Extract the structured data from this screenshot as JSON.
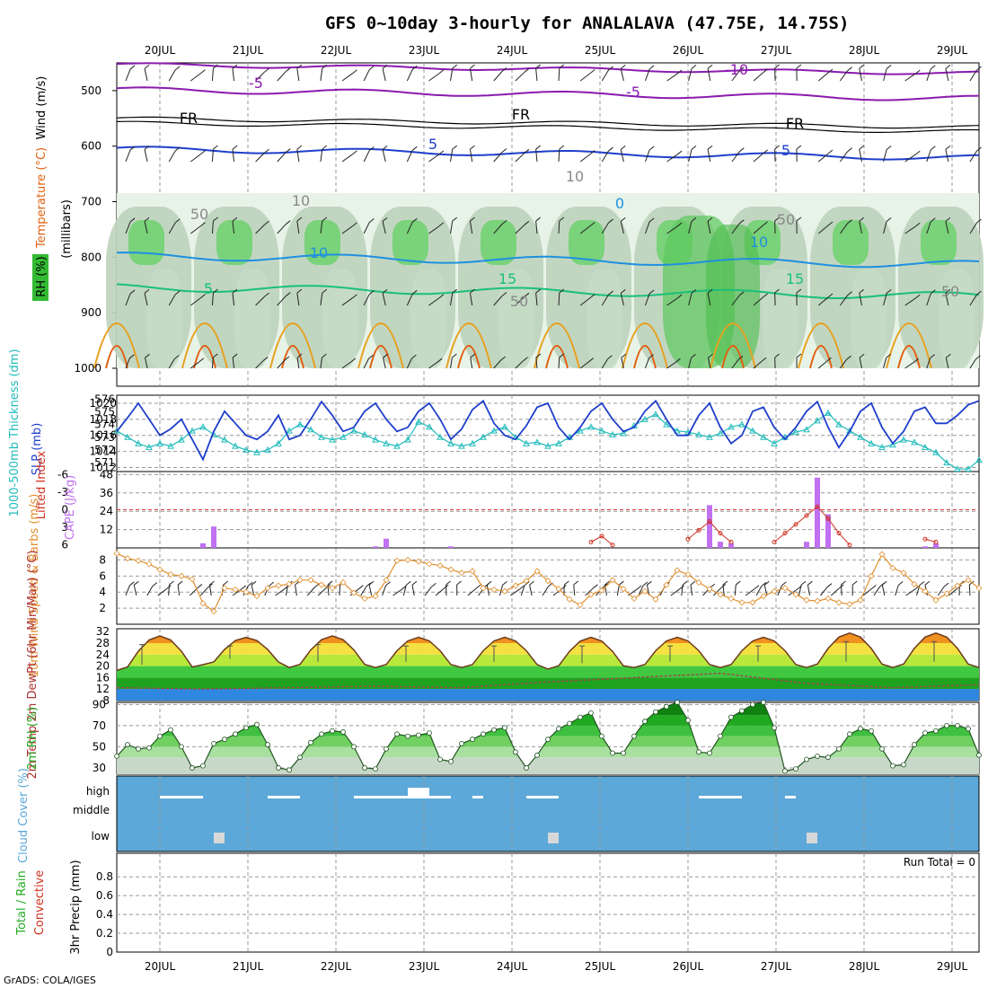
{
  "title": "GFS 0~10day 3-hourly for ANALALAVA (47.75E, 14.75S)",
  "credit": "GrADS: COLA/IGES",
  "run_total_text": "Run Total = 0",
  "colors": {
    "purple": "#8a1ab0",
    "blue": "#1f3fcc",
    "lightblue": "#1e90e0",
    "green15": "#1abf7a",
    "orange": "#e8a020",
    "darkorange": "#e06010",
    "thickness": "#22bbbb",
    "slp": "#1f3fcc",
    "cape": "#c070f0",
    "li": "#d03020",
    "wind10": "#e09030",
    "cloud": "#5ca8d8",
    "rh": "#22aa22"
  },
  "chart_data": [
    {
      "name": "upper-air",
      "type": "heatmap",
      "ylabel_parts": [
        "RH (%)",
        "Temperature (°C)",
        "Wind (m/s)"
      ],
      "ylabel2": "(millibars)",
      "y_ticks": [
        "500",
        "600",
        "700",
        "800",
        "900",
        "1000"
      ],
      "ylim": [
        1000,
        450
      ],
      "x_ticks": [
        "20JUL",
        "21JUL",
        "22JUL",
        "23JUL",
        "24JUL",
        "25JUL",
        "26JUL",
        "27JUL",
        "28JUL",
        "29JUL"
      ],
      "contour_labels": [
        "-10",
        "-5",
        "-5",
        "FR",
        "FR",
        "FR",
        "5",
        "5",
        "5",
        "10",
        "10",
        "0",
        "15",
        "15",
        "5",
        "50",
        "50",
        "50",
        "10",
        "50",
        "10"
      ]
    },
    {
      "name": "slp-thickness",
      "type": "line",
      "ylabel": "1000-500mb Thickness (dm)",
      "ylabel_slp": "SLP (mb)",
      "left_ticks": [
        "576",
        "575",
        "574",
        "573",
        "572",
        "571"
      ],
      "right_ticks": [
        "1020",
        "1018",
        "1016",
        "1014",
        "1012"
      ],
      "x": [
        0,
        1,
        2,
        3,
        4,
        5,
        6,
        7,
        8,
        9,
        10,
        11,
        12,
        13,
        14,
        15,
        16,
        17,
        18,
        19,
        20,
        21,
        22,
        23,
        24,
        25,
        26,
        27,
        28,
        29,
        30,
        31,
        32,
        33,
        34,
        35,
        36,
        37,
        38,
        39,
        40,
        41,
        42,
        43,
        44,
        45,
        46,
        47,
        48,
        49,
        50,
        51,
        52,
        53,
        54,
        55,
        56,
        57,
        58,
        59,
        60,
        61,
        62,
        63,
        64,
        65,
        66,
        67,
        68,
        69,
        70,
        71,
        72,
        73,
        74,
        75,
        76,
        77,
        78,
        79,
        80
      ],
      "series": [
        {
          "name": "SLP",
          "unit": "mb",
          "values": [
            1016.5,
            1018.2,
            1020.0,
            1018.0,
            1016.0,
            1016.8,
            1018.0,
            1015.5,
            1013.0,
            1016.5,
            1019.0,
            1017.5,
            1016.0,
            1015.5,
            1016.5,
            1018.5,
            1015.5,
            1016.0,
            1018.0,
            1020.2,
            1018.5,
            1016.5,
            1017.0,
            1019.0,
            1020.0,
            1018.0,
            1016.5,
            1017.0,
            1019.0,
            1020.0,
            1018.0,
            1015.5,
            1016.8,
            1019.2,
            1020.3,
            1017.5,
            1016.0,
            1015.5,
            1017.2,
            1019.5,
            1020.0,
            1017.0,
            1015.5,
            1017.0,
            1019.0,
            1020.0,
            1018.0,
            1016.5,
            1017.0,
            1019.0,
            1020.3,
            1018.0,
            1016.0,
            1016.0,
            1018.5,
            1020.0,
            1017.0,
            1015.0,
            1016.0,
            1019.0,
            1019.5,
            1017.0,
            1015.5,
            1017.0,
            1019.0,
            1020.2,
            1017.0,
            1014.5,
            1016.5,
            1019.0,
            1020.0,
            1017.0,
            1015.0,
            1016.5,
            1019.0,
            1019.5,
            1017.5,
            1017.5,
            1018.5,
            1019.8,
            1020.3
          ]
        },
        {
          "name": "Thickness",
          "unit": "dm",
          "values": [
            573.5,
            573.0,
            572.5,
            572.2,
            572.5,
            572.3,
            572.8,
            573.5,
            573.8,
            573.2,
            572.8,
            572.3,
            572.0,
            571.8,
            572.0,
            572.5,
            573.5,
            574.0,
            573.6,
            573.0,
            572.8,
            573.0,
            573.5,
            573.2,
            572.8,
            572.5,
            572.3,
            572.8,
            574.2,
            573.8,
            573.0,
            572.5,
            572.3,
            572.5,
            573.0,
            573.5,
            573.8,
            573.0,
            572.5,
            572.6,
            572.3,
            572.5,
            573.0,
            573.5,
            573.8,
            573.5,
            573.2,
            573.3,
            573.9,
            574.4,
            574.8,
            574.0,
            573.5,
            573.4,
            573.2,
            573.0,
            573.3,
            573.8,
            574.0,
            573.5,
            573.0,
            572.5,
            573.0,
            573.4,
            573.6,
            574.3,
            574.9,
            574.0,
            573.5,
            573.0,
            572.5,
            572.2,
            572.4,
            572.8,
            572.6,
            572.2,
            571.8,
            571.0,
            570.5,
            570.5,
            571.2
          ]
        }
      ]
    },
    {
      "name": "cape-li",
      "type": "bar",
      "ylabel_li": "Lifted Index",
      "ylabel_cape": "CAPE (J/kg)",
      "li_ticks": [
        "-6",
        "-3",
        "0",
        "3",
        "6"
      ],
      "cape_ticks": [
        "48",
        "36",
        "24",
        "12"
      ],
      "x": [
        8,
        9,
        24,
        25,
        31,
        44,
        45,
        46,
        48,
        49,
        54,
        55,
        56,
        60,
        61,
        62,
        63,
        64,
        65,
        66,
        67,
        68,
        69,
        70,
        71,
        72,
        73,
        74,
        75,
        76,
        77,
        78,
        79,
        80
      ],
      "cape_bars": [
        {
          "x": 8,
          "v": 3
        },
        {
          "x": 9,
          "v": 14
        },
        {
          "x": 24,
          "v": 1
        },
        {
          "x": 25,
          "v": 6
        },
        {
          "x": 31,
          "v": 1
        },
        {
          "x": 55,
          "v": 28
        },
        {
          "x": 56,
          "v": 4
        },
        {
          "x": 57,
          "v": 3
        },
        {
          "x": 64,
          "v": 4
        },
        {
          "x": 65,
          "v": 46
        },
        {
          "x": 66,
          "v": 22
        },
        {
          "x": 75,
          "v": 1
        },
        {
          "x": 76,
          "v": 3
        }
      ],
      "li_line": [
        {
          "x": 44,
          "v": 5.5
        },
        {
          "x": 45,
          "v": 4.5
        },
        {
          "x": 46,
          "v": 6.0
        },
        {
          "x": 53,
          "v": 5.0
        },
        {
          "x": 54,
          "v": 3.5
        },
        {
          "x": 55,
          "v": 2.0
        },
        {
          "x": 56,
          "v": 4.0
        },
        {
          "x": 57,
          "v": 5.5
        },
        {
          "x": 61,
          "v": 5.5
        },
        {
          "x": 62,
          "v": 4.0
        },
        {
          "x": 63,
          "v": 2.5
        },
        {
          "x": 64,
          "v": 1.0
        },
        {
          "x": 65,
          "v": -0.5
        },
        {
          "x": 66,
          "v": 1.5
        },
        {
          "x": 67,
          "v": 4.0
        },
        {
          "x": 68,
          "v": 6.0
        },
        {
          "x": 75,
          "v": 5.0
        },
        {
          "x": 76,
          "v": 5.5
        }
      ]
    },
    {
      "name": "wind-10m",
      "type": "line",
      "ylabel": "10m Wind Speed & Barbs (m/s)",
      "y_ticks": [
        "8",
        "6",
        "4",
        "2"
      ],
      "ylim": [
        0,
        9.5
      ],
      "x": [
        0,
        1,
        2,
        3,
        4,
        5,
        6,
        7,
        8,
        9,
        10,
        11,
        12,
        13,
        14,
        15,
        16,
        17,
        18,
        19,
        20,
        21,
        22,
        23,
        24,
        25,
        26,
        27,
        28,
        29,
        30,
        31,
        32,
        33,
        34,
        35,
        36,
        37,
        38,
        39,
        40,
        41,
        42,
        43,
        44,
        45,
        46,
        47,
        48,
        49,
        50,
        51,
        52,
        53,
        54,
        55,
        56,
        57,
        58,
        59,
        60,
        61,
        62,
        63,
        64,
        65,
        66,
        67,
        68,
        69,
        70,
        71,
        72,
        73,
        74,
        75,
        76,
        77,
        78,
        79,
        80
      ],
      "series": [
        {
          "name": "speed",
          "values": [
            8.8,
            8.2,
            7.9,
            7.5,
            6.8,
            6.2,
            6.0,
            5.6,
            2.6,
            1.6,
            4.5,
            4.3,
            4.0,
            3.5,
            4.5,
            4.8,
            5.0,
            5.5,
            5.5,
            4.9,
            4.5,
            5.2,
            3.9,
            3.2,
            3.5,
            5.5,
            7.9,
            8.0,
            7.8,
            7.5,
            7.3,
            6.8,
            6.4,
            6.6,
            4.5,
            4.3,
            4.1,
            4.8,
            5.4,
            6.6,
            5.4,
            4.4,
            3.1,
            2.4,
            3.7,
            4.2,
            5.5,
            4.4,
            3.2,
            4.1,
            3.1,
            4.9,
            6.7,
            6.2,
            5.2,
            4.4,
            3.7,
            3.2,
            2.7,
            2.7,
            3.5,
            4.1,
            4.5,
            3.7,
            3.0,
            2.9,
            3.2,
            2.7,
            2.5,
            3.0,
            6.0,
            8.7,
            7.0,
            6.4,
            5.0,
            4.1,
            3.0,
            3.8,
            4.8,
            5.5,
            4.5
          ]
        }
      ]
    },
    {
      "name": "temp-2m",
      "type": "area",
      "ylabel": "2m Temp 2m DewPt (6hr Min/Max) (°C)",
      "y_ticks": [
        "32",
        "28",
        "24",
        "20",
        "16",
        "12",
        "8"
      ],
      "ylim": [
        8,
        33
      ],
      "days": [
        "20JUL",
        "21JUL",
        "22JUL",
        "23JUL",
        "24JUL",
        "25JUL",
        "26JUL",
        "27JUL",
        "28JUL",
        "29JUL"
      ],
      "daily_max": [
        30.5,
        30.0,
        30.5,
        30.0,
        30.0,
        30.0,
        30.0,
        30.0,
        31.5,
        31.5
      ],
      "daily_min": [
        18.5,
        20.5,
        19.5,
        19.5,
        19.5,
        19.0,
        19.5,
        19.5,
        19.5,
        19.5
      ],
      "dewpoint_mean": [
        12.5,
        12.0,
        12.5,
        13.0,
        12.5,
        14.5,
        16.0,
        17.5,
        14.0,
        12.5,
        13.5
      ]
    },
    {
      "name": "rh-2m",
      "type": "area",
      "ylabel": "2m RH (%)",
      "y_ticks": [
        "90",
        "70",
        "50",
        "30"
      ],
      "ylim": [
        24,
        92
      ],
      "x": [
        0,
        1,
        2,
        3,
        4,
        5,
        6,
        7,
        8,
        9,
        10,
        11,
        12,
        13,
        14,
        15,
        16,
        17,
        18,
        19,
        20,
        21,
        22,
        23,
        24,
        25,
        26,
        27,
        28,
        29,
        30,
        31,
        32,
        33,
        34,
        35,
        36,
        37,
        38,
        39,
        40,
        41,
        42,
        43,
        44,
        45,
        46,
        47,
        48,
        49,
        50,
        51,
        52,
        53,
        54,
        55,
        56,
        57,
        58,
        59,
        60,
        61,
        62,
        63,
        64,
        65,
        66,
        67,
        68,
        69,
        70,
        71,
        72,
        73,
        74,
        75,
        76,
        77,
        78,
        79,
        80
      ],
      "series": [
        {
          "name": "RH",
          "values": [
            41,
            52,
            48,
            49,
            60,
            66,
            50,
            30,
            32,
            53,
            57,
            62,
            68,
            71,
            52,
            30,
            28,
            40,
            54,
            62,
            65,
            64,
            50,
            30,
            29,
            48,
            62,
            60,
            61,
            63,
            38,
            36,
            53,
            57,
            62,
            66,
            68,
            45,
            30,
            42,
            57,
            67,
            72,
            78,
            82,
            60,
            44,
            44,
            60,
            74,
            83,
            88,
            92,
            75,
            45,
            44,
            60,
            78,
            84,
            90,
            92,
            68,
            27,
            29,
            38,
            41,
            40,
            48,
            62,
            67,
            65,
            48,
            32,
            33,
            52,
            63,
            65,
            70,
            70,
            67,
            42
          ]
        }
      ]
    },
    {
      "name": "cloud-cover",
      "type": "heatmap",
      "ylabel": "Cloud Cover (%)",
      "levels": [
        "high",
        "middle",
        "low"
      ],
      "segments": [
        {
          "level": "high",
          "from": 4,
          "to": 8
        },
        {
          "level": "high",
          "from": 14,
          "to": 17
        },
        {
          "level": "high",
          "from": 22,
          "to": 27
        },
        {
          "level": "high",
          "from": 27,
          "to": 31
        },
        {
          "level": "high",
          "from": 33,
          "to": 34
        },
        {
          "level": "high",
          "from": 38,
          "to": 41
        },
        {
          "level": "high",
          "from": 54,
          "to": 58
        },
        {
          "level": "high",
          "from": 62,
          "to": 63
        },
        {
          "level": "low",
          "from": 9,
          "to": 10
        },
        {
          "level": "low",
          "from": 40,
          "to": 41
        },
        {
          "level": "low",
          "from": 64,
          "to": 65
        }
      ]
    },
    {
      "name": "precip",
      "type": "bar",
      "ylabel": "3hr Precip (mm)",
      "ylabel_parts": [
        "Total / Rain",
        "Convective"
      ],
      "y_ticks": [
        "0.8",
        "0.6",
        "0.4",
        "0.2",
        "0"
      ],
      "ylim": [
        0,
        1
      ],
      "x_ticks": [
        "20JUL",
        "21JUL",
        "22JUL",
        "23JUL",
        "24JUL",
        "25JUL",
        "26JUL",
        "27JUL",
        "28JUL",
        "29JUL"
      ],
      "values": []
    }
  ]
}
